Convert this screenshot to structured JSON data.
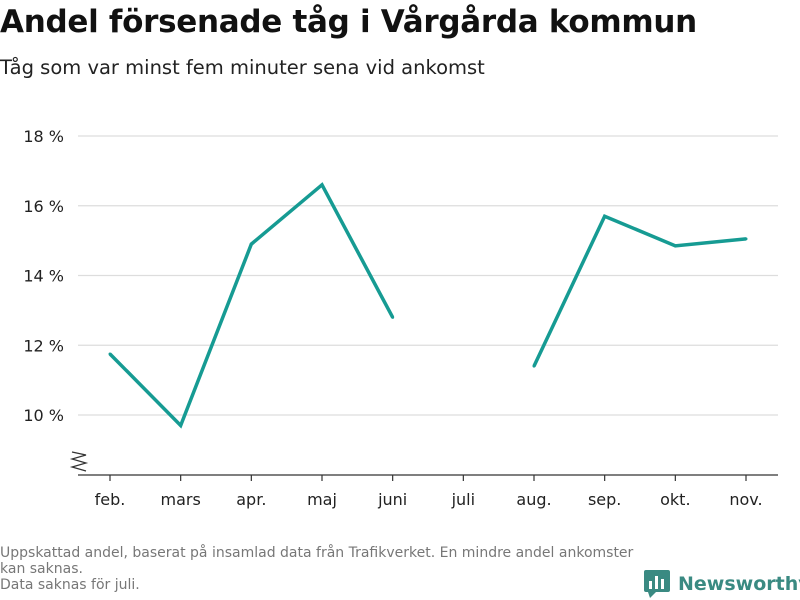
{
  "header": {
    "title": "Andel försenade tåg i Vårgårda kommun",
    "subtitle": "Tåg som var minst fem minuter sena vid ankomst"
  },
  "chart_data": {
    "type": "line",
    "title": "Andel försenade tåg i Vårgårda kommun",
    "subtitle": "Tåg som var minst fem minuter sena vid ankomst",
    "categories": [
      "feb.",
      "mars",
      "apr.",
      "maj",
      "juni",
      "juli",
      "aug.",
      "sep.",
      "okt.",
      "nov."
    ],
    "series": [
      {
        "values": [
          11.75,
          9.7,
          14.9,
          16.6,
          12.8,
          null,
          11.4,
          15.7,
          14.85,
          15.05
        ]
      }
    ],
    "y_ticks": [
      10,
      12,
      14,
      16,
      18
    ],
    "y_tick_labels": [
      "10 %",
      "12 %",
      "14 %",
      "16 %",
      "18 %"
    ],
    "ylim": [
      8.3,
      18
    ],
    "y_axis_break": true,
    "grid": true,
    "line_color": "#169b93",
    "xlabel": "",
    "ylabel": ""
  },
  "footer": {
    "note_line1": "Uppskattad andel, baserat på insamlad data från Trafikverket. En mindre andel ankomster kan saknas.",
    "note_line2": "Data saknas för juli.",
    "brand": "Newsworthy",
    "brand_icon": "bar-chart-logo-icon",
    "brand_color": "#3a8a82"
  }
}
